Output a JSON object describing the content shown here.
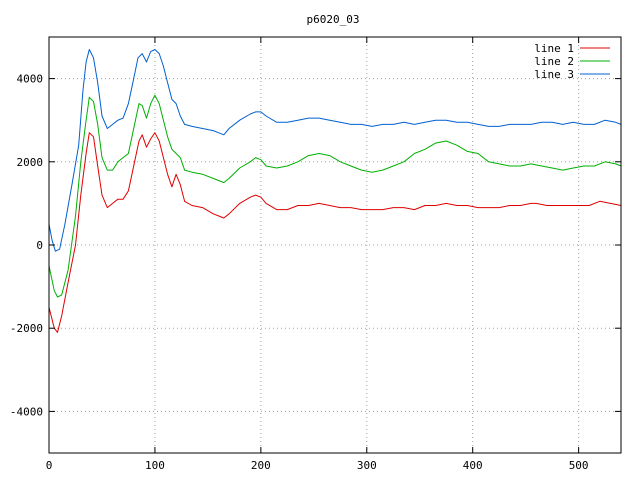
{
  "chart_data": {
    "type": "line",
    "title": "p6020_03",
    "xlabel": "",
    "ylabel": "",
    "xlim": [
      0,
      540
    ],
    "ylim": [
      -5000,
      5000
    ],
    "xticks": [
      0,
      100,
      200,
      300,
      400,
      500
    ],
    "yticks": [
      -4000,
      -2000,
      0,
      2000,
      4000
    ],
    "grid": true,
    "legend_position": "top-right",
    "series": [
      {
        "name": "line 1",
        "color": "#e00000",
        "points": [
          [
            0,
            -1500
          ],
          [
            5,
            -2000
          ],
          [
            8,
            -2100
          ],
          [
            12,
            -1700
          ],
          [
            18,
            -900
          ],
          [
            25,
            0
          ],
          [
            30,
            1200
          ],
          [
            35,
            2200
          ],
          [
            38,
            2700
          ],
          [
            42,
            2600
          ],
          [
            46,
            1900
          ],
          [
            50,
            1200
          ],
          [
            55,
            900
          ],
          [
            60,
            1000
          ],
          [
            65,
            1100
          ],
          [
            70,
            1100
          ],
          [
            75,
            1300
          ],
          [
            80,
            1900
          ],
          [
            85,
            2500
          ],
          [
            88,
            2650
          ],
          [
            92,
            2350
          ],
          [
            96,
            2550
          ],
          [
            100,
            2700
          ],
          [
            104,
            2500
          ],
          [
            108,
            2100
          ],
          [
            112,
            1700
          ],
          [
            116,
            1400
          ],
          [
            120,
            1700
          ],
          [
            124,
            1450
          ],
          [
            128,
            1050
          ],
          [
            135,
            950
          ],
          [
            145,
            900
          ],
          [
            155,
            750
          ],
          [
            160,
            700
          ],
          [
            165,
            650
          ],
          [
            170,
            750
          ],
          [
            180,
            1000
          ],
          [
            190,
            1150
          ],
          [
            195,
            1200
          ],
          [
            200,
            1150
          ],
          [
            205,
            1000
          ],
          [
            215,
            850
          ],
          [
            225,
            850
          ],
          [
            235,
            950
          ],
          [
            245,
            950
          ],
          [
            255,
            1000
          ],
          [
            265,
            950
          ],
          [
            275,
            900
          ],
          [
            285,
            900
          ],
          [
            295,
            850
          ],
          [
            305,
            850
          ],
          [
            315,
            850
          ],
          [
            325,
            900
          ],
          [
            335,
            900
          ],
          [
            345,
            850
          ],
          [
            355,
            950
          ],
          [
            365,
            950
          ],
          [
            375,
            1000
          ],
          [
            385,
            950
          ],
          [
            395,
            950
          ],
          [
            405,
            900
          ],
          [
            415,
            900
          ],
          [
            425,
            900
          ],
          [
            435,
            950
          ],
          [
            445,
            950
          ],
          [
            455,
            1000
          ],
          [
            460,
            1000
          ],
          [
            470,
            950
          ],
          [
            480,
            950
          ],
          [
            490,
            950
          ],
          [
            500,
            950
          ],
          [
            510,
            950
          ],
          [
            520,
            1050
          ],
          [
            530,
            1000
          ],
          [
            540,
            950
          ]
        ]
      },
      {
        "name": "line 2",
        "color": "#00b000",
        "points": [
          [
            0,
            -500
          ],
          [
            5,
            -1100
          ],
          [
            8,
            -1250
          ],
          [
            12,
            -1200
          ],
          [
            18,
            -600
          ],
          [
            25,
            700
          ],
          [
            30,
            2000
          ],
          [
            35,
            3000
          ],
          [
            38,
            3550
          ],
          [
            42,
            3450
          ],
          [
            46,
            2900
          ],
          [
            50,
            2100
          ],
          [
            55,
            1800
          ],
          [
            60,
            1800
          ],
          [
            65,
            2000
          ],
          [
            70,
            2100
          ],
          [
            75,
            2200
          ],
          [
            80,
            2800
          ],
          [
            85,
            3400
          ],
          [
            88,
            3350
          ],
          [
            92,
            3050
          ],
          [
            96,
            3400
          ],
          [
            100,
            3600
          ],
          [
            104,
            3400
          ],
          [
            108,
            3000
          ],
          [
            112,
            2600
          ],
          [
            116,
            2300
          ],
          [
            120,
            2200
          ],
          [
            124,
            2100
          ],
          [
            128,
            1800
          ],
          [
            135,
            1750
          ],
          [
            145,
            1700
          ],
          [
            155,
            1600
          ],
          [
            160,
            1550
          ],
          [
            165,
            1500
          ],
          [
            170,
            1600
          ],
          [
            180,
            1850
          ],
          [
            190,
            2000
          ],
          [
            195,
            2100
          ],
          [
            200,
            2050
          ],
          [
            205,
            1900
          ],
          [
            215,
            1850
          ],
          [
            225,
            1900
          ],
          [
            235,
            2000
          ],
          [
            245,
            2150
          ],
          [
            255,
            2200
          ],
          [
            265,
            2150
          ],
          [
            275,
            2000
          ],
          [
            285,
            1900
          ],
          [
            295,
            1800
          ],
          [
            305,
            1750
          ],
          [
            315,
            1800
          ],
          [
            325,
            1900
          ],
          [
            335,
            2000
          ],
          [
            345,
            2200
          ],
          [
            355,
            2300
          ],
          [
            365,
            2450
          ],
          [
            375,
            2500
          ],
          [
            385,
            2400
          ],
          [
            395,
            2250
          ],
          [
            405,
            2200
          ],
          [
            415,
            2000
          ],
          [
            425,
            1950
          ],
          [
            435,
            1900
          ],
          [
            445,
            1900
          ],
          [
            455,
            1950
          ],
          [
            465,
            1900
          ],
          [
            475,
            1850
          ],
          [
            485,
            1800
          ],
          [
            495,
            1850
          ],
          [
            505,
            1900
          ],
          [
            515,
            1900
          ],
          [
            525,
            2000
          ],
          [
            535,
            1950
          ],
          [
            540,
            1900
          ]
        ]
      },
      {
        "name": "line 3",
        "color": "#0060d0",
        "points": [
          [
            0,
            500
          ],
          [
            3,
            100
          ],
          [
            6,
            -150
          ],
          [
            10,
            -100
          ],
          [
            15,
            500
          ],
          [
            22,
            1500
          ],
          [
            28,
            2400
          ],
          [
            32,
            3700
          ],
          [
            35,
            4400
          ],
          [
            38,
            4700
          ],
          [
            42,
            4500
          ],
          [
            46,
            3900
          ],
          [
            50,
            3100
          ],
          [
            55,
            2800
          ],
          [
            60,
            2900
          ],
          [
            65,
            3000
          ],
          [
            70,
            3050
          ],
          [
            75,
            3400
          ],
          [
            80,
            4000
          ],
          [
            84,
            4500
          ],
          [
            88,
            4600
          ],
          [
            92,
            4400
          ],
          [
            96,
            4650
          ],
          [
            100,
            4700
          ],
          [
            104,
            4600
          ],
          [
            108,
            4300
          ],
          [
            112,
            3900
          ],
          [
            116,
            3500
          ],
          [
            120,
            3400
          ],
          [
            124,
            3100
          ],
          [
            128,
            2900
          ],
          [
            135,
            2850
          ],
          [
            145,
            2800
          ],
          [
            155,
            2750
          ],
          [
            160,
            2700
          ],
          [
            165,
            2650
          ],
          [
            170,
            2800
          ],
          [
            180,
            3000
          ],
          [
            190,
            3150
          ],
          [
            195,
            3200
          ],
          [
            200,
            3200
          ],
          [
            205,
            3100
          ],
          [
            215,
            2950
          ],
          [
            225,
            2950
          ],
          [
            235,
            3000
          ],
          [
            245,
            3050
          ],
          [
            255,
            3050
          ],
          [
            265,
            3000
          ],
          [
            275,
            2950
          ],
          [
            285,
            2900
          ],
          [
            295,
            2900
          ],
          [
            305,
            2850
          ],
          [
            315,
            2900
          ],
          [
            325,
            2900
          ],
          [
            335,
            2950
          ],
          [
            345,
            2900
          ],
          [
            355,
            2950
          ],
          [
            365,
            3000
          ],
          [
            375,
            3000
          ],
          [
            385,
            2950
          ],
          [
            395,
            2950
          ],
          [
            405,
            2900
          ],
          [
            415,
            2850
          ],
          [
            425,
            2850
          ],
          [
            435,
            2900
          ],
          [
            445,
            2900
          ],
          [
            455,
            2900
          ],
          [
            465,
            2950
          ],
          [
            475,
            2950
          ],
          [
            485,
            2900
          ],
          [
            495,
            2950
          ],
          [
            505,
            2900
          ],
          [
            515,
            2900
          ],
          [
            525,
            3000
          ],
          [
            535,
            2950
          ],
          [
            540,
            2900
          ]
        ]
      }
    ]
  }
}
